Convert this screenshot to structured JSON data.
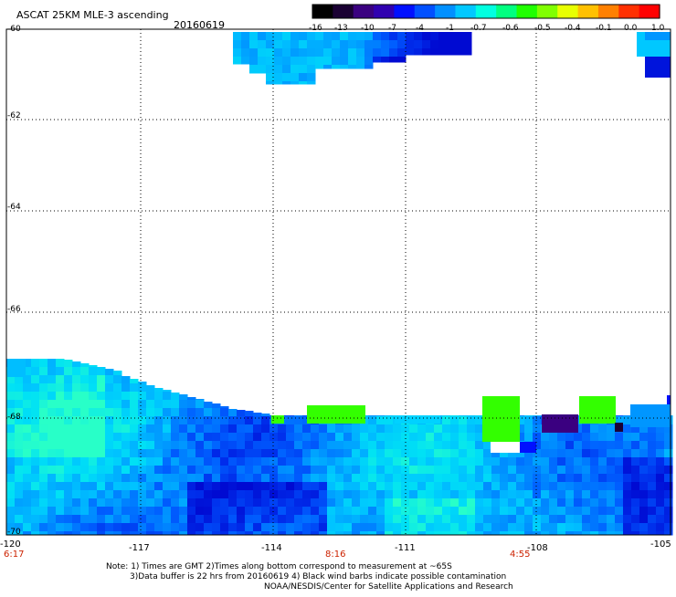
{
  "header": {
    "title": "ASCAT 25KM MLE-3 ascending",
    "date": "20160619"
  },
  "colorbar": {
    "labels": [
      "-16",
      "-13",
      "-10",
      "-7",
      "-4",
      "-1",
      "-0.7",
      "-0.6",
      "-0.5",
      "-0.4",
      "-0.1",
      "0.0",
      "1.0"
    ],
    "colors": [
      "#000000",
      "#1a0033",
      "#3a0080",
      "#3000b0",
      "#0010ff",
      "#0050ff",
      "#0090ff",
      "#00c8ff",
      "#00ffe0",
      "#00ff80",
      "#20ff00",
      "#80ff00",
      "#e8ff00",
      "#ffc000",
      "#ff8000",
      "#ff3000",
      "#ff0000"
    ]
  },
  "axes": {
    "y_labels": [
      "-60",
      "-62",
      "-64",
      "-66",
      "-68",
      "-70"
    ],
    "x_labels": [
      "-120",
      "-117",
      "-114",
      "-111",
      "-108",
      "-105"
    ],
    "time_labels": [
      "6:17",
      "8:16",
      "4:55"
    ]
  },
  "notes": {
    "line1": "Note: 1) Times are GMT 2)Times along bottom correspond to measurement at ~65S",
    "line2": "3)Data buffer is 22 hrs from 20160619 4) Black wind barbs indicate possible contamination",
    "line3": "NOAA/NESDIS/Center for Satellite Applications and Research"
  }
}
